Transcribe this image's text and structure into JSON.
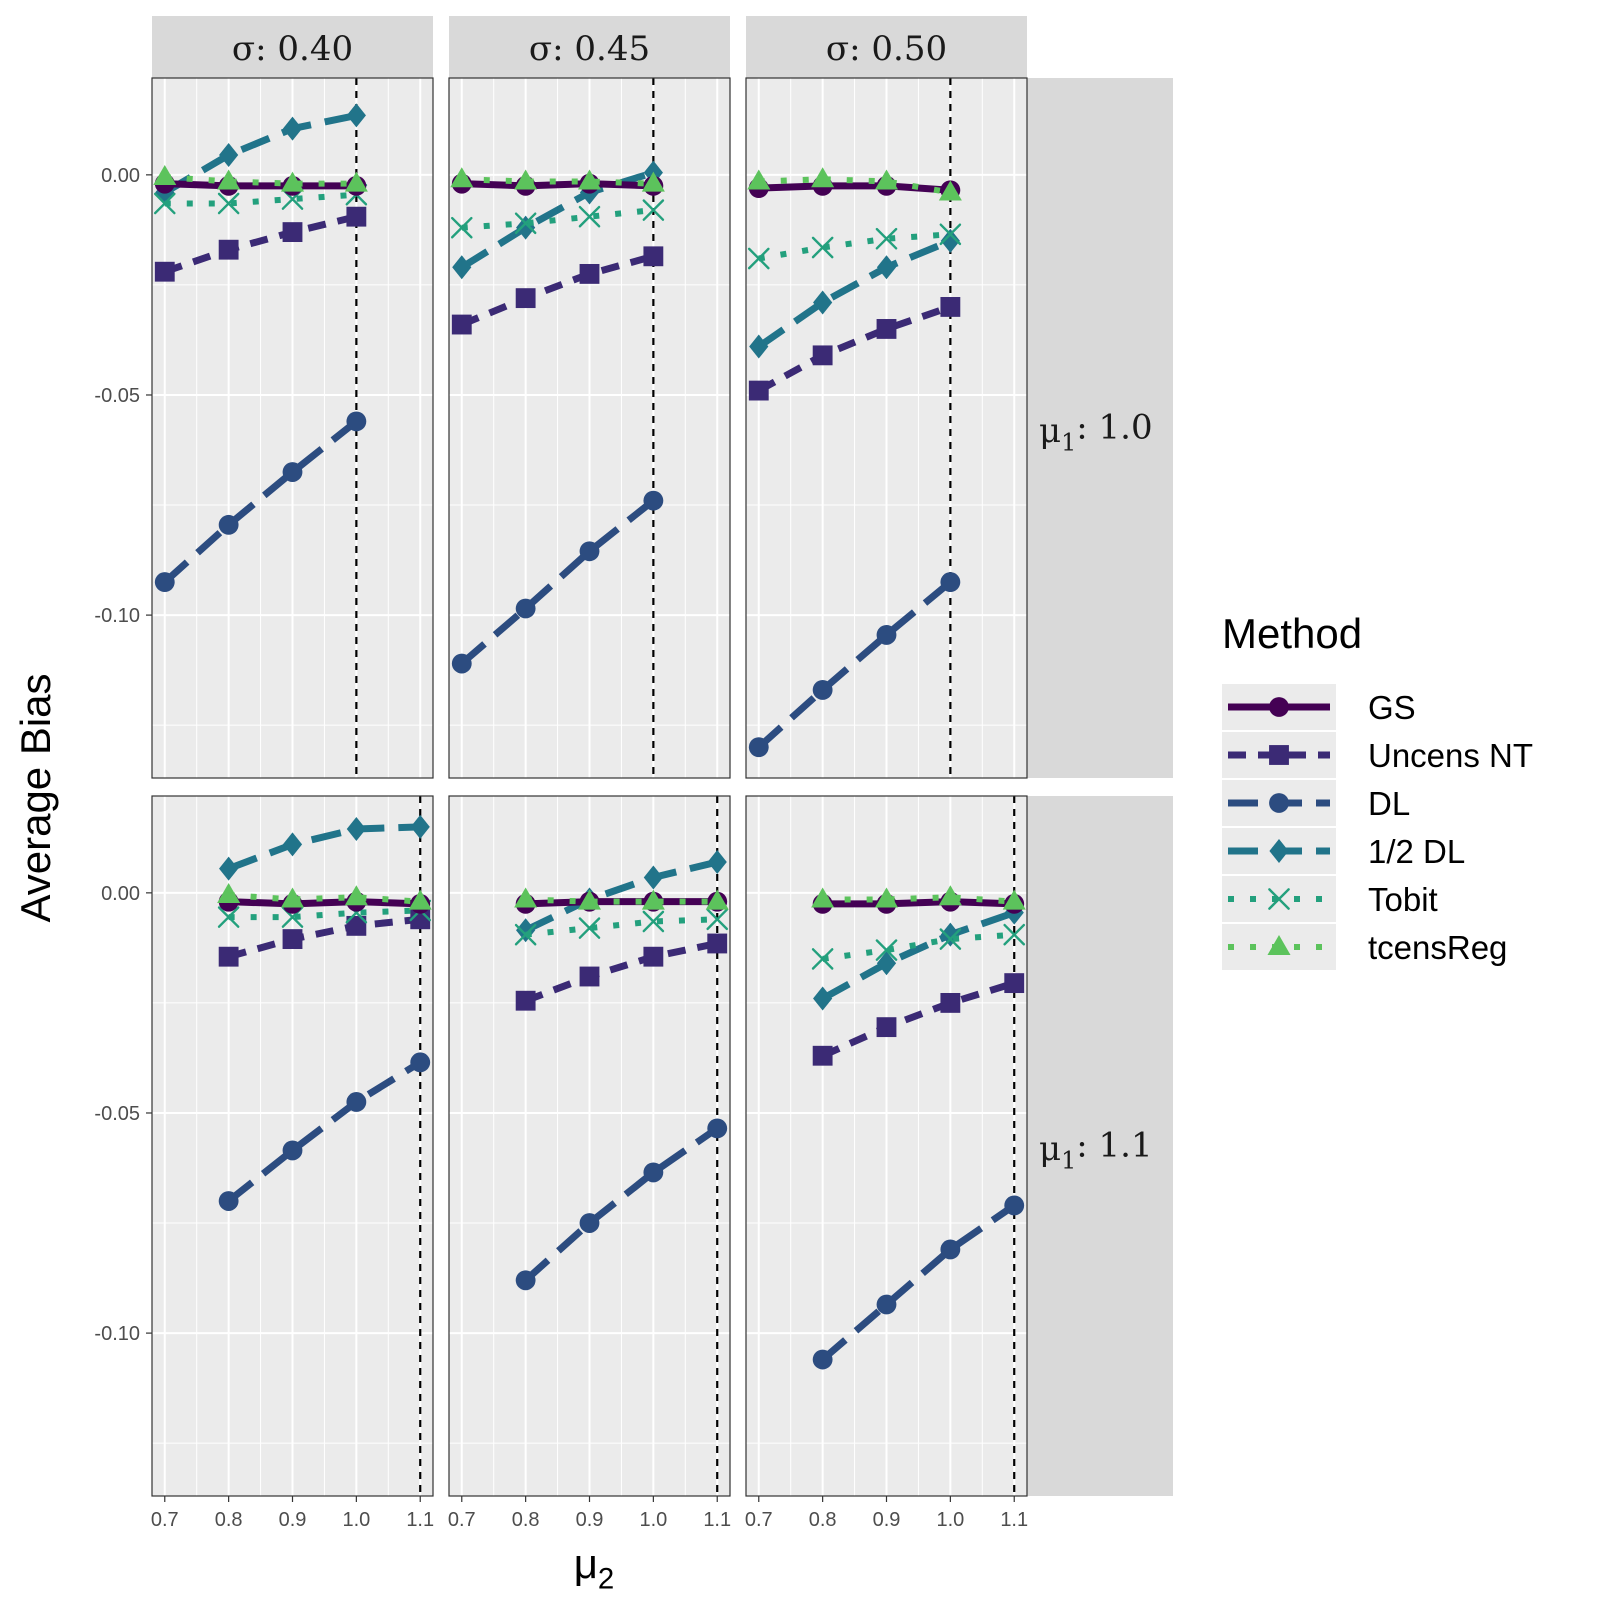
{
  "chart_data": {
    "type": "line",
    "facet_columns": [
      "σ: 0.40",
      "σ: 0.45",
      "σ: 0.50"
    ],
    "facet_rows": [
      "μ1: 1.0",
      "μ1: 1.1"
    ],
    "facet_row_labels": [
      {
        "sym": "μ",
        "sub": "1",
        "rest": ": 1.0"
      },
      {
        "sym": "μ",
        "sub": "1",
        "rest": ": 1.1"
      }
    ],
    "xlabel": {
      "sym": "μ",
      "sub": "2"
    },
    "ylabel": "Average Bias",
    "x_ticks": [
      0.7,
      0.8,
      0.9,
      1.0,
      1.1
    ],
    "x_tick_labels": [
      "0.7",
      "0.8",
      "0.9",
      "1.0",
      "1.1"
    ],
    "xlim": [
      0.68,
      1.12
    ],
    "y_ticks": [
      0.0,
      -0.05,
      -0.1
    ],
    "y_tick_labels": [
      "0.00",
      "-0.05",
      "-0.10"
    ],
    "ylim": [
      -0.137,
      0.022
    ],
    "grid": true,
    "reference_line_x": [
      1.0,
      1.1
    ],
    "legend": {
      "title": "Method",
      "position": "right",
      "entries": [
        "GS",
        "Uncens NT",
        "DL",
        "1/2 DL",
        "Tobit",
        "tcensReg"
      ]
    },
    "methods": [
      {
        "name": "GS",
        "color": "#440154",
        "marker": "circle",
        "dash": "solid"
      },
      {
        "name": "Uncens NT",
        "color": "#3b2a75",
        "marker": "square",
        "dash": "dashed"
      },
      {
        "name": "DL",
        "color": "#2c4c80",
        "marker": "circle",
        "dash": "longdash"
      },
      {
        "name": "1/2 DL",
        "color": "#21748a",
        "marker": "diamond",
        "dash": "longdash"
      },
      {
        "name": "Tobit",
        "color": "#23a07d",
        "marker": "x",
        "dash": "dotted"
      },
      {
        "name": "tcensReg",
        "color": "#5cc35c",
        "marker": "triangle",
        "dash": "dotted"
      }
    ],
    "panels": [
      {
        "row": 0,
        "col": 0,
        "x": [
          0.7,
          0.8,
          0.9,
          1.0
        ],
        "series": {
          "GS": [
            -0.002,
            -0.0025,
            -0.0025,
            -0.0025
          ],
          "Uncens NT": [
            -0.022,
            -0.017,
            -0.013,
            -0.0095
          ],
          "DL": [
            -0.0925,
            -0.0795,
            -0.0675,
            -0.056
          ],
          "1/2 DL": [
            -0.004,
            0.0045,
            0.0105,
            0.0135
          ],
          "Tobit": [
            -0.0065,
            -0.0065,
            -0.0055,
            -0.0045
          ],
          "tcensReg": [
            -0.0005,
            -0.0015,
            -0.002,
            -0.002
          ]
        }
      },
      {
        "row": 0,
        "col": 1,
        "x": [
          0.7,
          0.8,
          0.9,
          1.0
        ],
        "series": {
          "GS": [
            -0.002,
            -0.0025,
            -0.002,
            -0.0025
          ],
          "Uncens NT": [
            -0.034,
            -0.028,
            -0.0225,
            -0.0185
          ],
          "DL": [
            -0.111,
            -0.0985,
            -0.0855,
            -0.074
          ],
          "1/2 DL": [
            -0.021,
            -0.012,
            -0.004,
            0.0005
          ],
          "Tobit": [
            -0.012,
            -0.011,
            -0.0095,
            -0.008
          ],
          "tcensReg": [
            -0.001,
            -0.0015,
            -0.0015,
            -0.002
          ]
        }
      },
      {
        "row": 0,
        "col": 2,
        "x": [
          0.7,
          0.8,
          0.9,
          1.0
        ],
        "series": {
          "GS": [
            -0.003,
            -0.0025,
            -0.0025,
            -0.0035
          ],
          "Uncens NT": [
            -0.049,
            -0.041,
            -0.035,
            -0.03
          ],
          "DL": [
            -0.13,
            -0.117,
            -0.1045,
            -0.0925
          ],
          "1/2 DL": [
            -0.039,
            -0.029,
            -0.021,
            -0.015
          ],
          "Tobit": [
            -0.019,
            -0.0165,
            -0.0145,
            -0.0135
          ],
          "tcensReg": [
            -0.0015,
            -0.001,
            -0.0015,
            -0.004
          ]
        }
      },
      {
        "row": 1,
        "col": 0,
        "x": [
          0.8,
          0.9,
          1.0,
          1.1
        ],
        "series": {
          "GS": [
            -0.002,
            -0.0025,
            -0.002,
            -0.0025
          ],
          "Uncens NT": [
            -0.0145,
            -0.0105,
            -0.0075,
            -0.006
          ],
          "DL": [
            -0.07,
            -0.0585,
            -0.0475,
            -0.0385
          ],
          "1/2 DL": [
            0.0055,
            0.011,
            0.0145,
            0.015
          ],
          "Tobit": [
            -0.0055,
            -0.0055,
            -0.0045,
            -0.004
          ],
          "tcensReg": [
            -0.0005,
            -0.0015,
            -0.001,
            -0.002
          ]
        }
      },
      {
        "row": 1,
        "col": 1,
        "x": [
          0.8,
          0.9,
          1.0,
          1.1
        ],
        "series": {
          "GS": [
            -0.0025,
            -0.002,
            -0.002,
            -0.002
          ],
          "Uncens NT": [
            -0.0245,
            -0.019,
            -0.0145,
            -0.0115
          ],
          "DL": [
            -0.088,
            -0.075,
            -0.0635,
            -0.0535
          ],
          "1/2 DL": [
            -0.0085,
            -0.0015,
            0.0035,
            0.007
          ],
          "Tobit": [
            -0.0095,
            -0.008,
            -0.0065,
            -0.006
          ],
          "tcensReg": [
            -0.0015,
            -0.002,
            -0.002,
            -0.002
          ]
        }
      },
      {
        "row": 1,
        "col": 2,
        "x": [
          0.8,
          0.9,
          1.0,
          1.1
        ],
        "series": {
          "GS": [
            -0.0025,
            -0.0025,
            -0.002,
            -0.0025
          ],
          "Uncens NT": [
            -0.037,
            -0.0305,
            -0.025,
            -0.0205
          ],
          "DL": [
            -0.106,
            -0.0935,
            -0.081,
            -0.071
          ],
          "1/2 DL": [
            -0.024,
            -0.016,
            -0.0095,
            -0.0045
          ],
          "Tobit": [
            -0.015,
            -0.013,
            -0.0105,
            -0.0095
          ],
          "tcensReg": [
            -0.0015,
            -0.0015,
            -0.001,
            -0.002
          ]
        }
      }
    ]
  }
}
